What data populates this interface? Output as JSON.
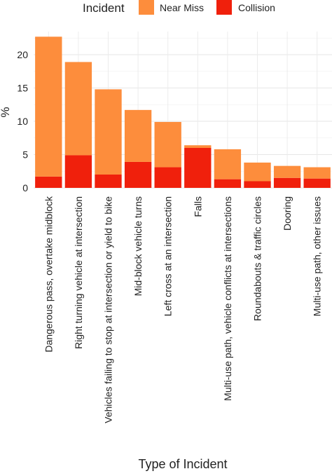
{
  "chart_data": {
    "type": "bar",
    "stacked": true,
    "title": "",
    "xlabel": "Type of Incident",
    "ylabel": "%",
    "ylim": [
      0,
      24
    ],
    "yticks": [
      0,
      5,
      10,
      15,
      20
    ],
    "grid": true,
    "legend": {
      "title": "Incident",
      "position": "top",
      "entries": [
        {
          "name": "Near Miss",
          "color": "#fd8d3c"
        },
        {
          "name": "Collision",
          "color": "#f0200c"
        }
      ]
    },
    "categories": [
      "Dangerous pass, overtake midblock",
      "Right turning vehicle at intersection",
      "Vehicles failing to stop at intersection or yield to bike",
      "Mid-block vehicle turns",
      "Left cross at an intersection",
      "Falls",
      "Multi-use path, vehicle   conflicts at intersections",
      "Roundabouts & traffic circles",
      "Dooring",
      "Multi-use path, other issues"
    ],
    "series": [
      {
        "name": "Collision",
        "color": "#f0200c",
        "values": [
          1.7,
          4.9,
          2.0,
          3.9,
          3.1,
          6.0,
          1.3,
          1.0,
          1.5,
          1.4
        ]
      },
      {
        "name": "Near Miss",
        "color": "#fd8d3c",
        "values": [
          21.0,
          14.0,
          12.8,
          7.8,
          6.8,
          0.4,
          4.5,
          2.8,
          1.8,
          1.7
        ]
      }
    ]
  }
}
